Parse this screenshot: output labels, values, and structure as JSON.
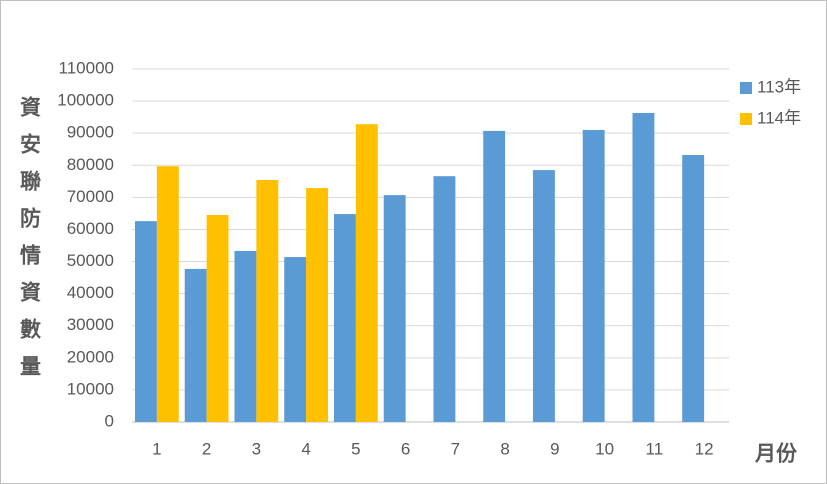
{
  "chart_data": {
    "type": "bar",
    "y_label": "資安聯防情資數量",
    "x_label": "月份",
    "categories": [
      "1",
      "2",
      "3",
      "4",
      "5",
      "6",
      "7",
      "8",
      "9",
      "10",
      "11",
      "12"
    ],
    "series": [
      {
        "name": "113年",
        "color": "#5b9bd5",
        "values": [
          62600,
          47700,
          53300,
          51400,
          64800,
          70700,
          76600,
          90700,
          78500,
          91000,
          96300,
          83200
        ]
      },
      {
        "name": "114年",
        "color": "#ffc000",
        "values": [
          79700,
          64500,
          75400,
          72900,
          92800,
          null,
          null,
          null,
          null,
          null,
          null,
          null
        ]
      }
    ],
    "ylim": [
      0,
      110000
    ],
    "yticks": [
      0,
      10000,
      20000,
      30000,
      40000,
      50000,
      60000,
      70000,
      80000,
      90000,
      100000,
      110000
    ],
    "grid": true
  }
}
